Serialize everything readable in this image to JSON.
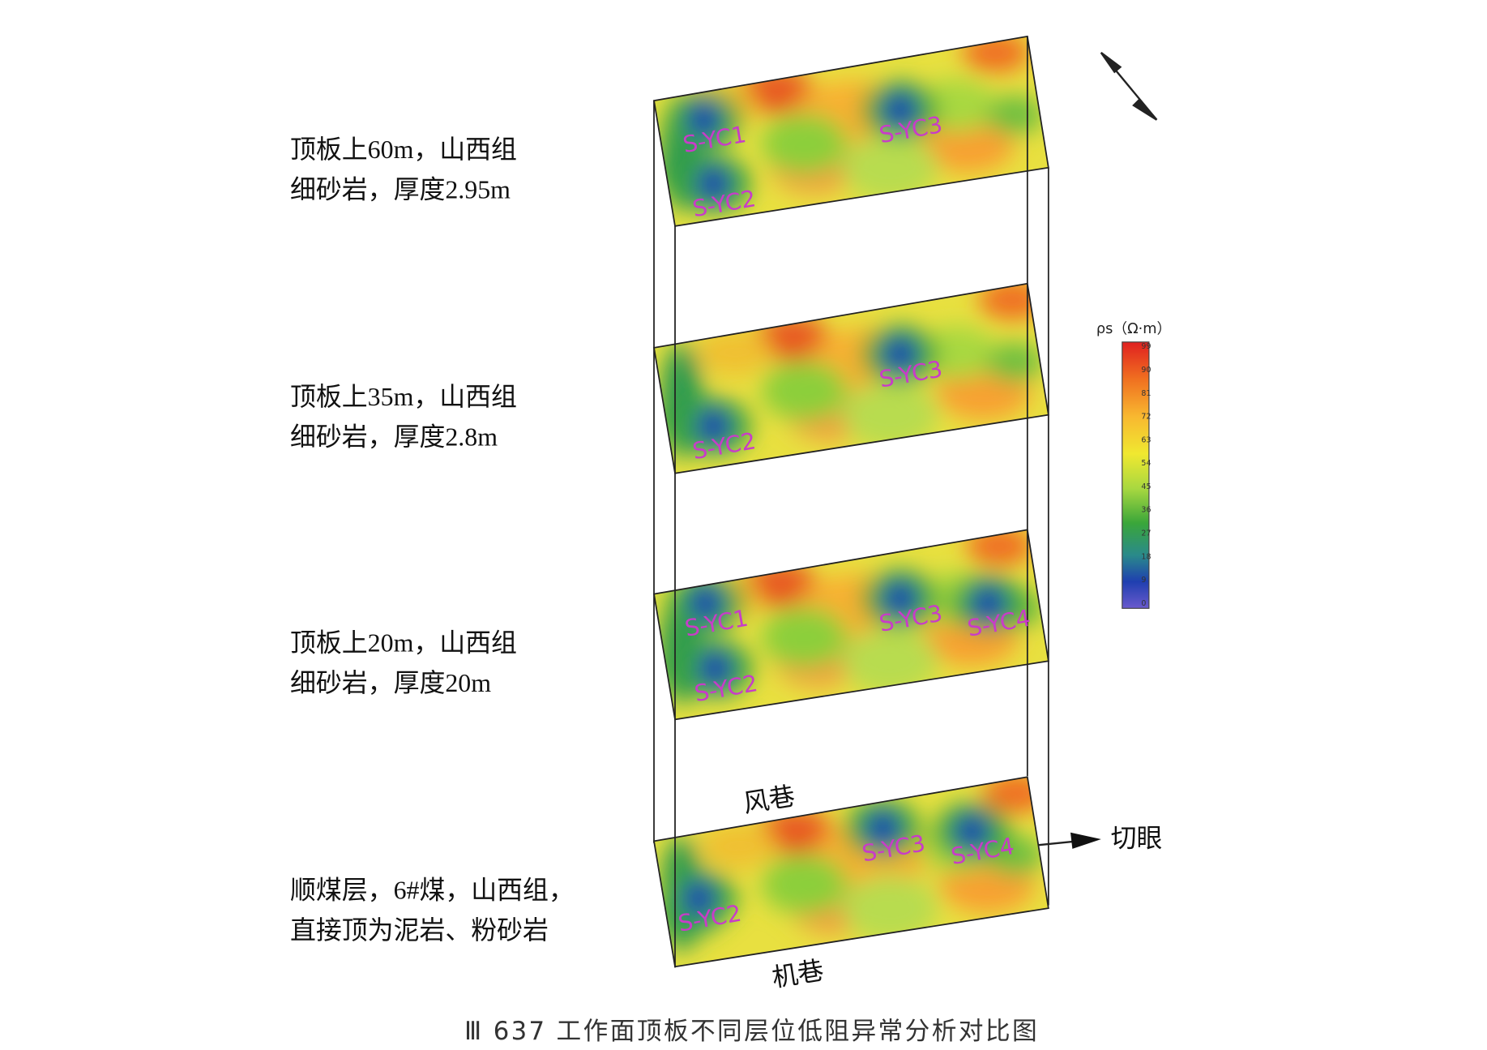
{
  "layers": [
    {
      "lines": [
        "顶板上60m，山西组",
        "细砂岩，厚度2.95m"
      ],
      "anomalies": [
        "S-YC1",
        "S-YC3",
        "S-YC2"
      ]
    },
    {
      "lines": [
        "顶板上35m，山西组",
        "细砂岩，厚度2.8m"
      ],
      "anomalies": [
        "S-YC3",
        "S-YC2"
      ]
    },
    {
      "lines": [
        "顶板上20m，山西组",
        "细砂岩，厚度20m"
      ],
      "anomalies": [
        "S-YC1",
        "S-YC3",
        "S-YC4",
        "S-YC2"
      ]
    },
    {
      "lines": [
        "顺煤层，6#煤，山西组，",
        "直接顶为泥岩、粉砂岩"
      ],
      "anomalies": [
        "S-YC3",
        "S-YC4",
        "S-YC2"
      ]
    }
  ],
  "roadways": {
    "upper": "风巷",
    "lower": "机巷",
    "cut": "切眼"
  },
  "legend": {
    "title": "ρs（Ω·m）",
    "ticks": [
      0,
      9,
      18,
      27,
      36,
      45,
      54,
      63,
      72,
      81,
      90,
      99
    ]
  },
  "caption": "Ⅲ 637 工作面顶板不同层位低阻异常分析对比图"
}
